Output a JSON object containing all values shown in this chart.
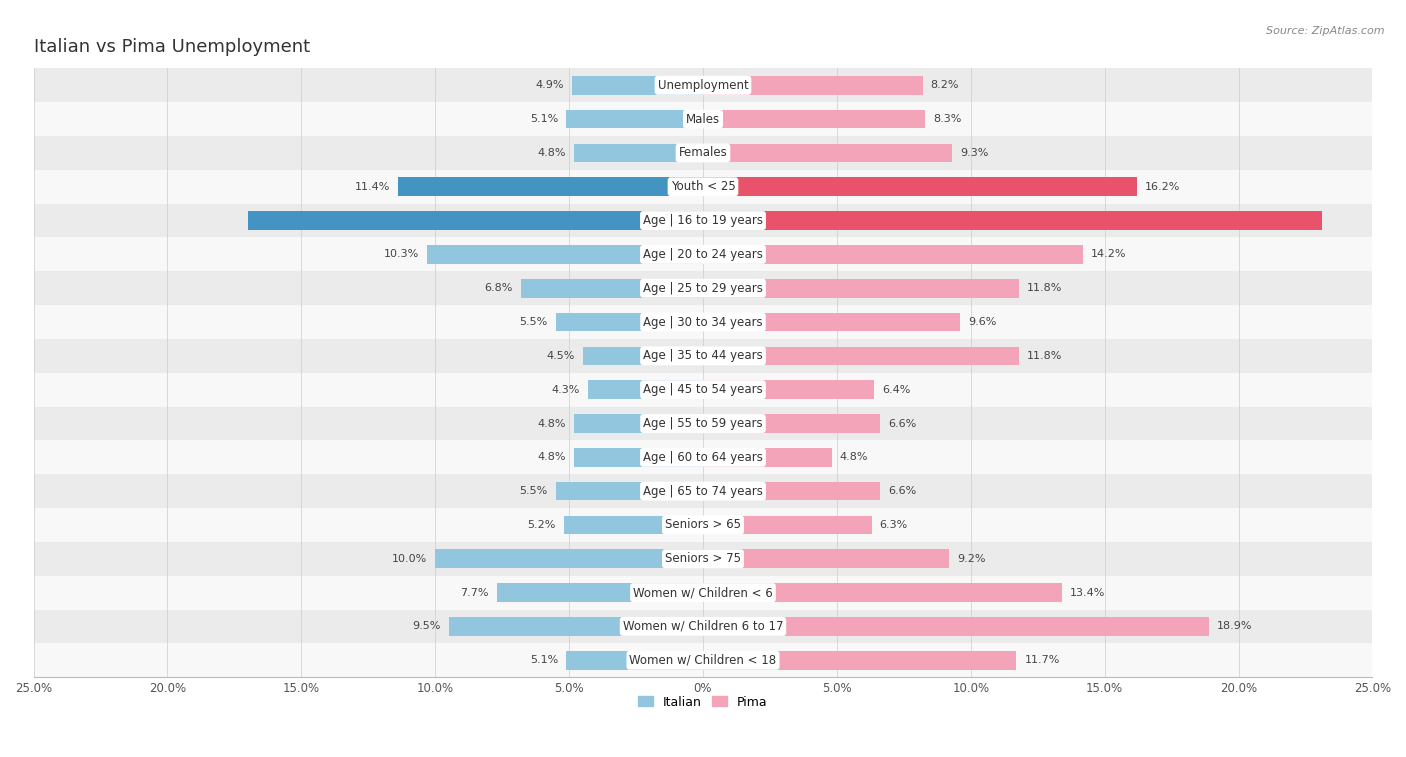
{
  "title": "Italian vs Pima Unemployment",
  "source": "Source: ZipAtlas.com",
  "categories": [
    "Unemployment",
    "Males",
    "Females",
    "Youth < 25",
    "Age | 16 to 19 years",
    "Age | 20 to 24 years",
    "Age | 25 to 29 years",
    "Age | 30 to 34 years",
    "Age | 35 to 44 years",
    "Age | 45 to 54 years",
    "Age | 55 to 59 years",
    "Age | 60 to 64 years",
    "Age | 65 to 74 years",
    "Seniors > 65",
    "Seniors > 75",
    "Women w/ Children < 6",
    "Women w/ Children 6 to 17",
    "Women w/ Children < 18"
  ],
  "italian_values": [
    4.9,
    5.1,
    4.8,
    11.4,
    17.0,
    10.3,
    6.8,
    5.5,
    4.5,
    4.3,
    4.8,
    4.8,
    5.5,
    5.2,
    10.0,
    7.7,
    9.5,
    5.1
  ],
  "pima_values": [
    8.2,
    8.3,
    9.3,
    16.2,
    23.1,
    14.2,
    11.8,
    9.6,
    11.8,
    6.4,
    6.6,
    4.8,
    6.6,
    6.3,
    9.2,
    13.4,
    18.9,
    11.7
  ],
  "italian_color": "#92c5de",
  "pima_color": "#f4a4b8",
  "highlight_italian_color": "#4393c3",
  "highlight_pima_color": "#e8526a",
  "highlight_rows": [
    3,
    4
  ],
  "row_bg_even": "#ebebeb",
  "row_bg_odd": "#f8f8f8",
  "axis_max": 25.0,
  "legend_labels": [
    "Italian",
    "Pima"
  ],
  "title_fontsize": 13,
  "label_fontsize": 8.5,
  "value_fontsize": 8.0,
  "tick_fontsize": 8.5
}
